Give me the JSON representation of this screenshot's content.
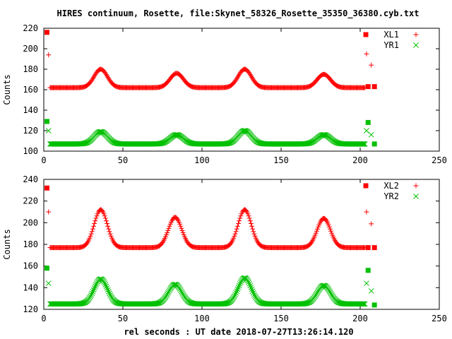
{
  "chart_data": {
    "title": "HIRES continuum, Rosette, file:Skynet_58326_Rosette_35350_36380.cyb.txt",
    "xlabel": "rel seconds : UT date 2018-07-27T13:26:14.120",
    "xlim": [
      0,
      250
    ],
    "xticks": [
      "0",
      "50",
      "100",
      "150",
      "200",
      "250"
    ],
    "colors": {
      "red": "#ff0000",
      "green": "#00c000"
    },
    "panels": [
      {
        "type": "scatter",
        "ylabel": "Counts",
        "ylim": [
          100,
          220
        ],
        "yticks": [
          "100",
          "120",
          "140",
          "160",
          "180",
          "200",
          "220"
        ],
        "legend_position": "top-right",
        "series": [
          {
            "name": "XL1",
            "marker": "+",
            "color": "#ff0000",
            "baseline": 162,
            "peaks": [
              [
                36,
                180
              ],
              [
                84,
                176
              ],
              [
                127,
                180
              ],
              [
                177,
                175
              ]
            ],
            "calibration_points": [
              [
                2,
                216
              ],
              [
                3,
                194
              ],
              [
                204,
                195
              ],
              [
                205,
                163
              ],
              [
                207,
                184
              ],
              [
                209,
                163
              ]
            ]
          },
          {
            "name": "YR1",
            "marker": "x",
            "color": "#00c000",
            "baseline": 107,
            "peaks": [
              [
                36,
                119
              ],
              [
                84,
                116
              ],
              [
                127,
                120
              ],
              [
                177,
                116
              ]
            ],
            "calibration_points": [
              [
                2,
                129
              ],
              [
                3,
                120
              ],
              [
                204,
                120
              ],
              [
                205,
                128
              ],
              [
                207,
                116
              ],
              [
                209,
                107
              ]
            ]
          }
        ]
      },
      {
        "type": "scatter",
        "ylabel": "Counts",
        "ylim": [
          120,
          240
        ],
        "yticks": [
          "120",
          "140",
          "160",
          "180",
          "200",
          "220",
          "240"
        ],
        "legend_position": "top-right",
        "series": [
          {
            "name": "XL2",
            "marker": "+",
            "color": "#ff0000",
            "baseline": 177,
            "peaks": [
              [
                36,
                212
              ],
              [
                83,
                205
              ],
              [
                127,
                212
              ],
              [
                177,
                204
              ]
            ],
            "calibration_points": [
              [
                2,
                232
              ],
              [
                3,
                210
              ],
              [
                204,
                210
              ],
              [
                205,
                177
              ],
              [
                207,
                199
              ],
              [
                209,
                177
              ]
            ]
          },
          {
            "name": "YR2",
            "marker": "x",
            "color": "#00c000",
            "baseline": 125,
            "peaks": [
              [
                36,
                148
              ],
              [
                83,
                143
              ],
              [
                127,
                149
              ],
              [
                177,
                142
              ]
            ],
            "calibration_points": [
              [
                2,
                158
              ],
              [
                3,
                144
              ],
              [
                204,
                144
              ],
              [
                205,
                156
              ],
              [
                207,
                137
              ],
              [
                209,
                124
              ]
            ]
          }
        ]
      }
    ]
  }
}
